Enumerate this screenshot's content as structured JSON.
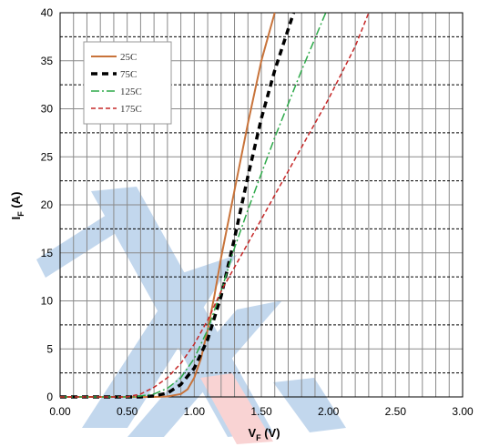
{
  "chart_data": {
    "type": "line",
    "ylabel": {
      "main": "I",
      "sub": "F",
      "unit": " (A)"
    },
    "xlabel": {
      "main": "V",
      "sub": "F",
      "unit": " (V)"
    },
    "xlim": [
      0,
      3.0
    ],
    "ylim": [
      0,
      40
    ],
    "x_major_ticks": [
      0,
      0.5,
      1.0,
      1.5,
      2.0,
      2.5,
      3.0
    ],
    "x_tick_labels": [
      "0.00",
      "0.50",
      "1.00",
      "1.50",
      "2.00",
      "2.50",
      "3.00"
    ],
    "x_minor_step": 0.1,
    "y_major_ticks": [
      0,
      5,
      10,
      15,
      20,
      25,
      30,
      35,
      40
    ],
    "y_tick_labels": [
      "0",
      "5",
      "10",
      "15",
      "20",
      "25",
      "30",
      "35",
      "40"
    ],
    "y_minor_step": 2.5,
    "grid": true,
    "legend_placement": "top-left",
    "series": [
      {
        "name": "25C",
        "color": "#c8733a",
        "dash": "solid",
        "points": [
          [
            0,
            0
          ],
          [
            0.7,
            0
          ],
          [
            0.8,
            0.05
          ],
          [
            0.9,
            0.3
          ],
          [
            0.95,
            0.8
          ],
          [
            1.0,
            2.0
          ],
          [
            1.05,
            4.0
          ],
          [
            1.1,
            7.0
          ],
          [
            1.15,
            10.5
          ],
          [
            1.2,
            14.5
          ],
          [
            1.3,
            21.5
          ],
          [
            1.4,
            28.5
          ],
          [
            1.5,
            35
          ],
          [
            1.6,
            40
          ]
        ]
      },
      {
        "name": "75C",
        "color": "#000000",
        "dash": "heavy",
        "points": [
          [
            0,
            0
          ],
          [
            0.6,
            0
          ],
          [
            0.7,
            0.1
          ],
          [
            0.8,
            0.4
          ],
          [
            0.9,
            1.3
          ],
          [
            1.0,
            3.0
          ],
          [
            1.1,
            6.0
          ],
          [
            1.2,
            10.5
          ],
          [
            1.3,
            16.5
          ],
          [
            1.4,
            23
          ],
          [
            1.5,
            29
          ],
          [
            1.6,
            34
          ],
          [
            1.74,
            40
          ]
        ]
      },
      {
        "name": "125C",
        "color": "#2eaa4a",
        "dash": "dashdot",
        "points": [
          [
            0,
            0
          ],
          [
            0.55,
            0
          ],
          [
            0.6,
            0.1
          ],
          [
            0.7,
            0.3
          ],
          [
            0.8,
            0.9
          ],
          [
            0.9,
            2.0
          ],
          [
            1.0,
            4.0
          ],
          [
            1.1,
            7.0
          ],
          [
            1.2,
            11.0
          ],
          [
            1.3,
            15.5
          ],
          [
            1.4,
            19.5
          ],
          [
            1.6,
            27
          ],
          [
            1.8,
            34
          ],
          [
            1.98,
            40
          ]
        ]
      },
      {
        "name": "175C",
        "color": "#c62828",
        "dash": "dashed",
        "points": [
          [
            0,
            0
          ],
          [
            0.5,
            0
          ],
          [
            0.6,
            0.3
          ],
          [
            0.7,
            1.0
          ],
          [
            0.8,
            2.0
          ],
          [
            0.9,
            3.5
          ],
          [
            1.0,
            5.5
          ],
          [
            1.1,
            8.0
          ],
          [
            1.2,
            11.0
          ],
          [
            1.3,
            13.5
          ],
          [
            1.4,
            16.0
          ],
          [
            1.6,
            21.0
          ],
          [
            1.8,
            26
          ],
          [
            2.0,
            31
          ],
          [
            2.2,
            36.5
          ],
          [
            2.3,
            40
          ]
        ]
      }
    ]
  }
}
